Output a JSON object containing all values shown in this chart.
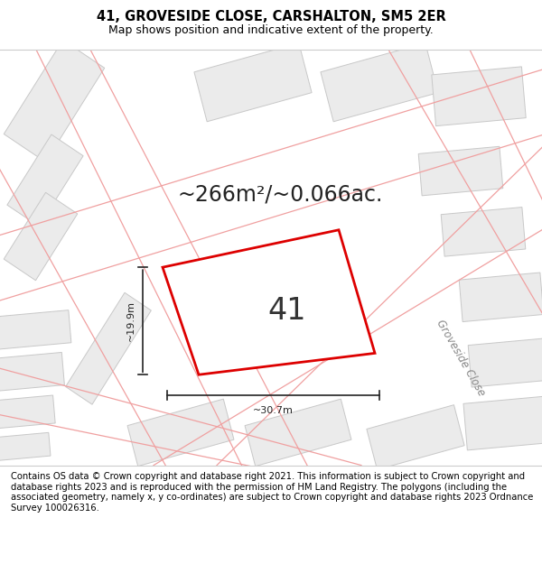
{
  "title": "41, GROVESIDE CLOSE, CARSHALTON, SM5 2ER",
  "subtitle": "Map shows position and indicative extent of the property.",
  "area_text": "~266m²/~0.066ac.",
  "label_41": "41",
  "dim_width": "~30.7m",
  "dim_height": "~19.9m",
  "road_label": "Groveside Close",
  "footer_text": "Contains OS data © Crown copyright and database right 2021. This information is subject to Crown copyright and database rights 2023 and is reproduced with the permission of HM Land Registry. The polygons (including the associated geometry, namely x, y co-ordinates) are subject to Crown copyright and database rights 2023 Ordnance Survey 100026316.",
  "bg_color": "#ffffff",
  "map_bg": "#f9f8f8",
  "highlight_color": "#dd0000",
  "line_color": "#f0a0a0",
  "building_fill": "#ebebeb",
  "building_edge": "#c8c8c8",
  "title_fontsize": 10.5,
  "subtitle_fontsize": 9,
  "area_fontsize": 17,
  "label_fontsize": 24,
  "footer_fontsize": 7.2
}
